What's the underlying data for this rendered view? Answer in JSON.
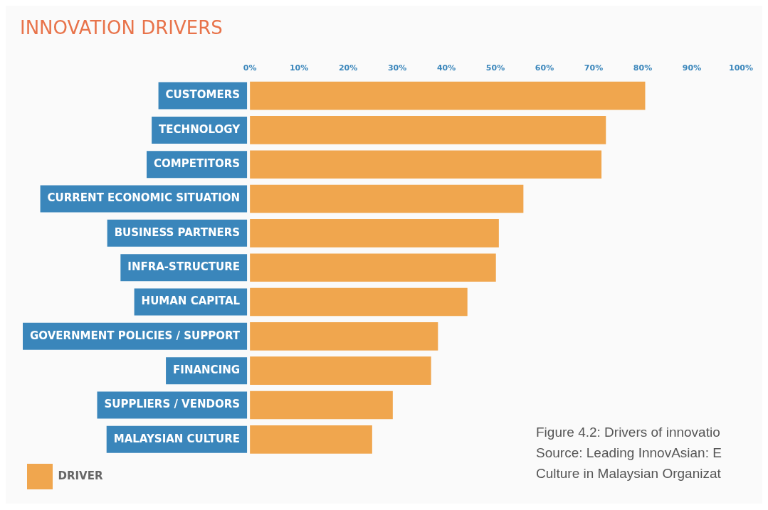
{
  "chart_data": {
    "type": "bar",
    "orientation": "horizontal",
    "title": "INNOVATION DRIVERS",
    "categories": [
      "CUSTOMERS",
      "TECHNOLOGY",
      "COMPETITORS",
      "CURRENT ECONOMIC SITUATION",
      "BUSINESS PARTNERS",
      "INFRA-STRUCTURE",
      "HUMAN CAPITAL",
      "GOVERNMENT POLICIES / SUPPORT",
      "FINANCING",
      "SUPPLIERS / VENDORS",
      "MALAYSIAN CULTURE"
    ],
    "series": [
      {
        "name": "DRIVER",
        "color": "#f0a64e",
        "values": [
          80.5,
          72.5,
          71.6,
          55.7,
          50.7,
          50.1,
          44.3,
          38.3,
          36.9,
          29.1,
          24.9
        ]
      }
    ],
    "xlim": [
      0,
      100
    ],
    "xticks": [
      {
        "value": 0,
        "label": "0%"
      },
      {
        "value": 10,
        "label": "10%"
      },
      {
        "value": 20,
        "label": "20%"
      },
      {
        "value": 30,
        "label": "30%"
      },
      {
        "value": 40,
        "label": "40%"
      },
      {
        "value": 50,
        "label": "50%"
      },
      {
        "value": 60,
        "label": "60%"
      },
      {
        "value": 70,
        "label": "70%"
      },
      {
        "value": 80,
        "label": "80%"
      },
      {
        "value": 90,
        "label": "90%"
      },
      {
        "value": 100,
        "label": "100%"
      }
    ],
    "grid": false,
    "legend": "bottom left",
    "annotations": [
      "Figure 4.2: Drivers of innovatio",
      "Source: Leading InnovAsian: E",
      "Culture in Malaysian Organizat"
    ]
  }
}
